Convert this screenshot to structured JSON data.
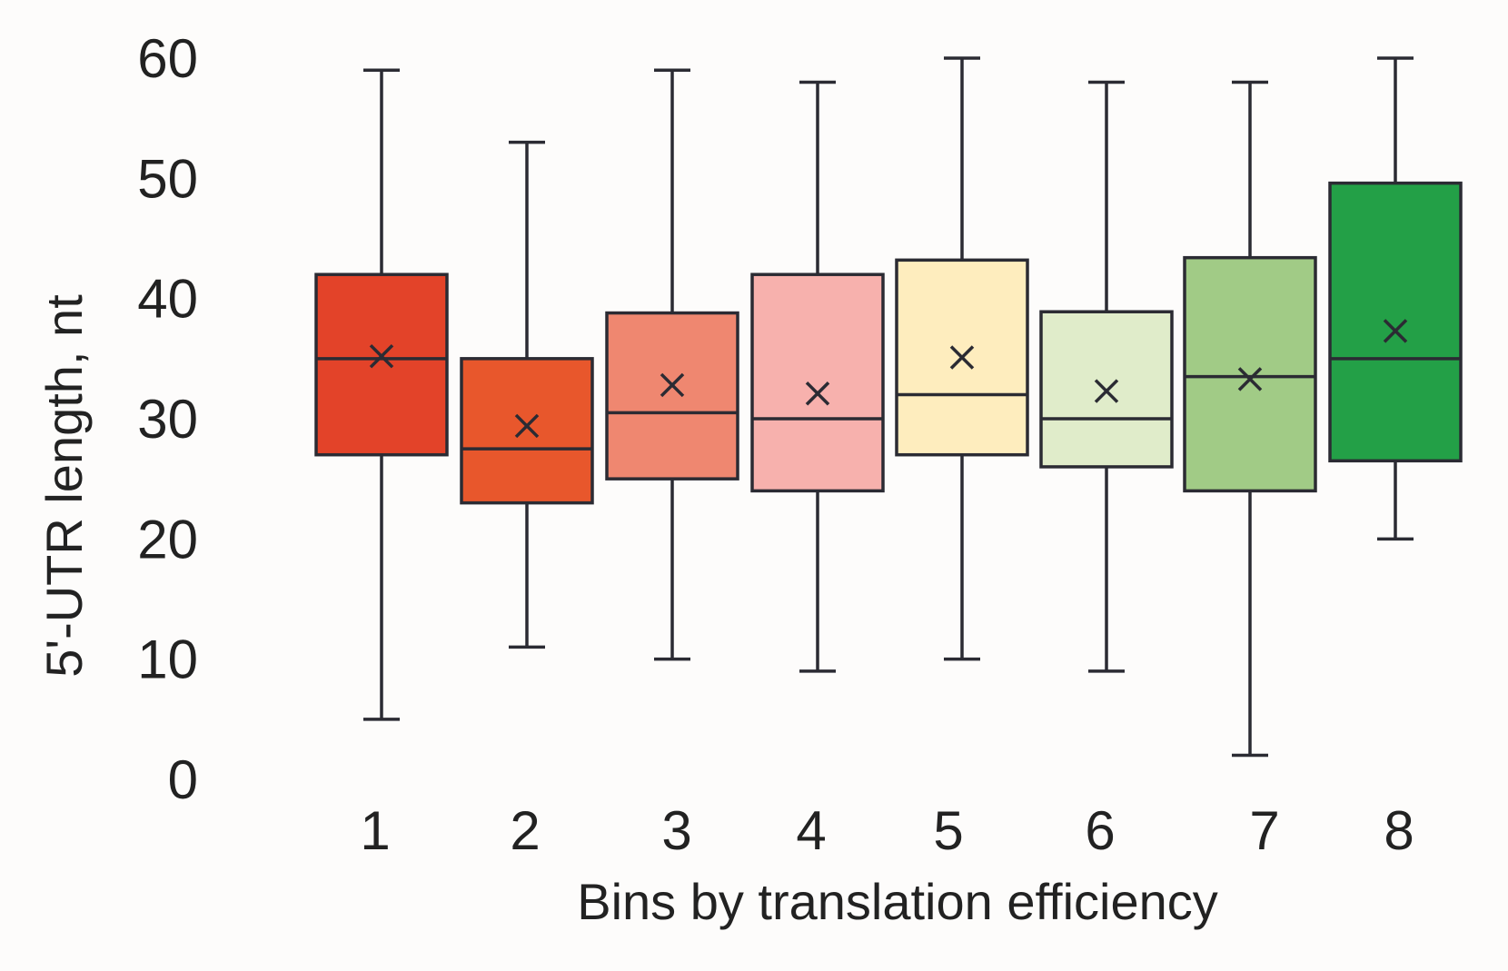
{
  "chart_data": {
    "type": "box",
    "xlabel": "Bins by translation efficiency",
    "ylabel": "5'-UTR length, nt",
    "ylim": [
      0,
      60
    ],
    "yticks": [
      0,
      10,
      20,
      30,
      40,
      50,
      60
    ],
    "categories": [
      "1",
      "2",
      "3",
      "4",
      "5",
      "6",
      "7",
      "8"
    ],
    "boxes": [
      {
        "category": "1",
        "min": 5,
        "q1": 27,
        "median": 35,
        "q3": 42,
        "max": 59,
        "mean": 35.2,
        "color": "#e34329"
      },
      {
        "category": "2",
        "min": 11,
        "q1": 23,
        "median": 27.5,
        "q3": 35,
        "max": 53,
        "mean": 29.4,
        "color": "#e8572c"
      },
      {
        "category": "3",
        "min": 10,
        "q1": 25,
        "median": 30.5,
        "q3": 38.8,
        "max": 59,
        "mean": 32.8,
        "color": "#ef8770"
      },
      {
        "category": "4",
        "min": 9,
        "q1": 24,
        "median": 30,
        "q3": 42,
        "max": 58,
        "mean": 32.1,
        "color": "#f7b1ad"
      },
      {
        "category": "5",
        "min": 10,
        "q1": 27,
        "median": 32,
        "q3": 43.2,
        "max": 60,
        "mean": 35.1,
        "color": "#feedbe"
      },
      {
        "category": "6",
        "min": 9,
        "q1": 26,
        "median": 30,
        "q3": 38.9,
        "max": 58,
        "mean": 32.3,
        "color": "#e0ecca"
      },
      {
        "category": "7",
        "min": 2,
        "q1": 24,
        "median": 33.5,
        "q3": 43.4,
        "max": 58,
        "mean": 33.3,
        "color": "#a1cb86"
      },
      {
        "category": "8",
        "min": 20,
        "q1": 26.5,
        "median": 35,
        "q3": 49.6,
        "max": 60,
        "mean": 37.3,
        "color": "#23a047"
      }
    ],
    "grid": false,
    "legend": "none"
  }
}
